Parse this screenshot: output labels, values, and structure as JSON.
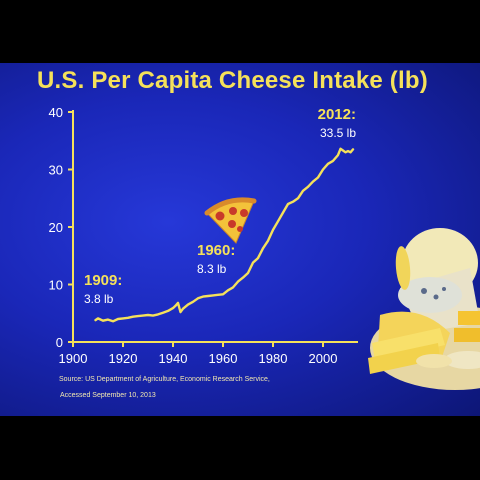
{
  "title": "U.S. Per Capita Cheese Intake (lb)",
  "source_line1": "Source: US Department of Agriculture, Economic Research Service,",
  "source_line2": "Accessed September 10, 2013",
  "colors": {
    "line": "#f5e15a",
    "title": "#f5e15a",
    "axis": "#f5e15a",
    "background": "#1a27b8"
  },
  "chart_data": {
    "type": "line",
    "title": "U.S. Per Capita Cheese Intake (lb)",
    "xlabel": "",
    "ylabel": "",
    "xlim": [
      1900,
      2012
    ],
    "ylim": [
      0,
      40
    ],
    "grid": false,
    "x_ticks": [
      1900,
      1920,
      1940,
      1960,
      1980,
      2000
    ],
    "y_ticks": [
      0,
      10,
      20,
      30,
      40
    ],
    "series": [
      {
        "x": [
          1909,
          1910,
          1912,
          1914,
          1916,
          1918,
          1920,
          1922,
          1924,
          1926,
          1928,
          1930,
          1932,
          1934,
          1936,
          1938,
          1940,
          1941,
          1942,
          1943,
          1944,
          1946,
          1948,
          1950,
          1952,
          1954,
          1956,
          1958,
          1960,
          1962,
          1964,
          1966,
          1968,
          1970,
          1972,
          1974,
          1976,
          1978,
          1980,
          1982,
          1984,
          1986,
          1988,
          1990,
          1992,
          1994,
          1996,
          1998,
          2000,
          2002,
          2004,
          2006,
          2007,
          2008,
          2009,
          2010,
          2011,
          2012
        ],
        "values": [
          3.8,
          4.1,
          3.7,
          3.9,
          3.6,
          4.0,
          4.1,
          4.2,
          4.4,
          4.5,
          4.6,
          4.7,
          4.6,
          4.8,
          5.1,
          5.4,
          5.9,
          6.3,
          6.8,
          5.2,
          5.8,
          6.5,
          7.0,
          7.6,
          7.9,
          8.0,
          8.1,
          8.2,
          8.3,
          9.0,
          9.5,
          10.5,
          11.2,
          12.0,
          13.8,
          14.6,
          16.3,
          17.6,
          19.5,
          21.0,
          22.5,
          24.0,
          24.4,
          25.0,
          26.3,
          27.0,
          27.9,
          28.6,
          30.0,
          31.0,
          31.5,
          32.5,
          33.6,
          33.3,
          33.0,
          33.2,
          33.0,
          33.5
        ]
      }
    ],
    "annotations": [
      {
        "year": "1909:",
        "value": "3.8 lb"
      },
      {
        "year": "1960:",
        "value": "8.3 lb"
      },
      {
        "year": "2012:",
        "value": "33.5 lb"
      }
    ]
  }
}
